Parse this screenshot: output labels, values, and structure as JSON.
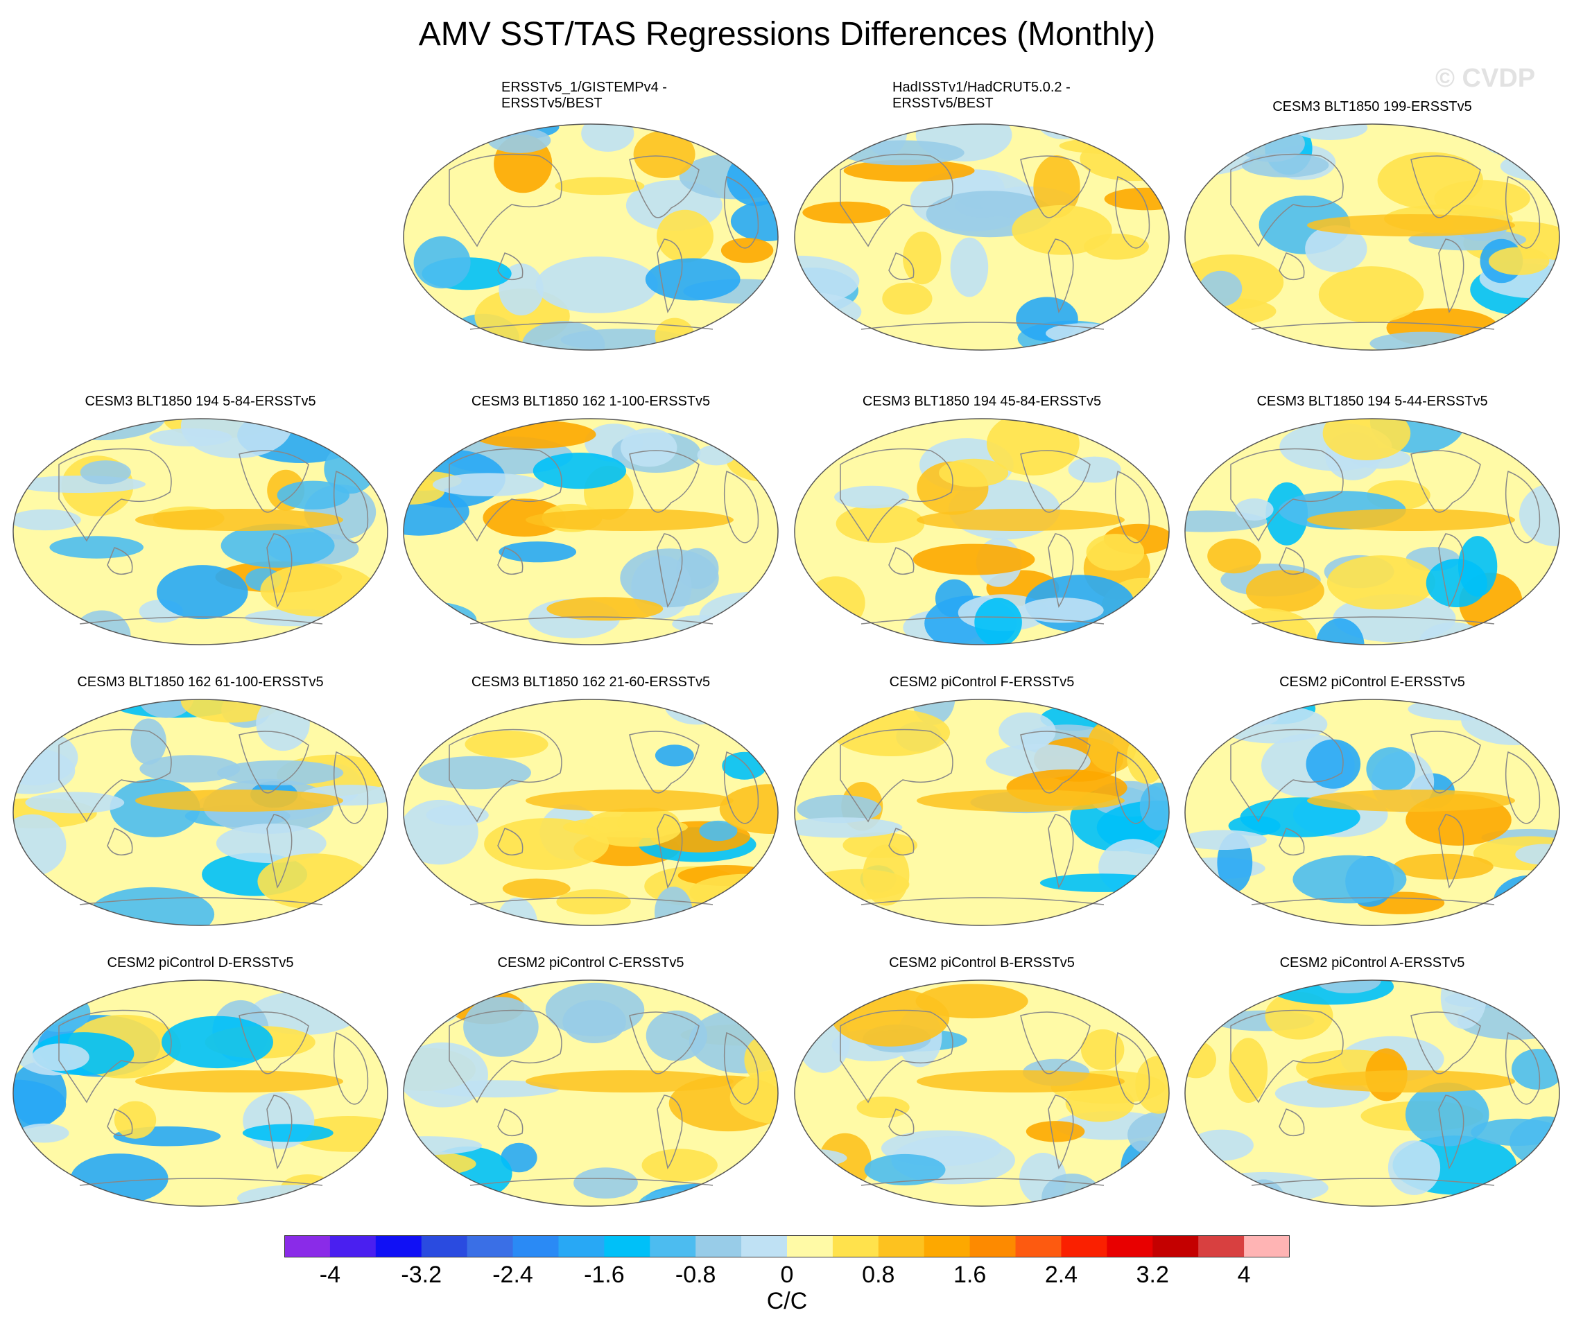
{
  "figure": {
    "title": "AMV SST/TAS Regressions Differences (Monthly)",
    "credit": "© CVDP"
  },
  "panels": [
    {
      "title": "ERSSTv5_1/GISTEMPv4 -\nERSSTv5/BEST",
      "row": 0,
      "col": 1,
      "align": "left"
    },
    {
      "title": "HadISSTv1/HadCRUT5.0.2 -\nERSSTv5/BEST",
      "row": 0,
      "col": 2,
      "align": "left"
    },
    {
      "title": "CESM3 BLT1850 199-ERSSTv5",
      "row": 0,
      "col": 3,
      "align": "center"
    },
    {
      "title": "CESM3 BLT1850 194 5-84-ERSSTv5",
      "row": 1,
      "col": 0,
      "align": "center"
    },
    {
      "title": "CESM3 BLT1850 162 1-100-ERSSTv5",
      "row": 1,
      "col": 1,
      "align": "center"
    },
    {
      "title": "CESM3 BLT1850 194 45-84-ERSSTv5",
      "row": 1,
      "col": 2,
      "align": "center"
    },
    {
      "title": "CESM3 BLT1850 194 5-44-ERSSTv5",
      "row": 1,
      "col": 3,
      "align": "center"
    },
    {
      "title": "CESM3 BLT1850 162 61-100-ERSSTv5",
      "row": 2,
      "col": 0,
      "align": "center"
    },
    {
      "title": "CESM3 BLT1850 162 21-60-ERSSTv5",
      "row": 2,
      "col": 1,
      "align": "center"
    },
    {
      "title": "CESM2 piControl F-ERSSTv5",
      "row": 2,
      "col": 2,
      "align": "center"
    },
    {
      "title": "CESM2 piControl E-ERSSTv5",
      "row": 2,
      "col": 3,
      "align": "center"
    },
    {
      "title": "CESM2 piControl D-ERSSTv5",
      "row": 3,
      "col": 0,
      "align": "center"
    },
    {
      "title": "CESM2 piControl C-ERSSTv5",
      "row": 3,
      "col": 1,
      "align": "center"
    },
    {
      "title": "CESM2 piControl B-ERSSTv5",
      "row": 3,
      "col": 2,
      "align": "center"
    },
    {
      "title": "CESM2 piControl A-ERSSTv5",
      "row": 3,
      "col": 3,
      "align": "center"
    }
  ],
  "colorbar": {
    "units": "C/C",
    "colors": [
      "#8a2be8",
      "#4a1ff0",
      "#1010f5",
      "#2a4be0",
      "#3a6fe6",
      "#2a8af5",
      "#28a8f5",
      "#00c0f8",
      "#4cbcf0",
      "#98cce8",
      "#bfe1f4",
      "#fffaa6",
      "#ffe24c",
      "#fdc21f",
      "#fda800",
      "#fd8a00",
      "#fd5a10",
      "#fa2000",
      "#e80000",
      "#c40000",
      "#d84040",
      "#ffb4b4"
    ],
    "tick_labels": [
      "-4",
      "-3.2",
      "-2.4",
      "-1.6",
      "-0.8",
      "0",
      "0.8",
      "1.6",
      "2.4",
      "3.2",
      "4"
    ]
  }
}
